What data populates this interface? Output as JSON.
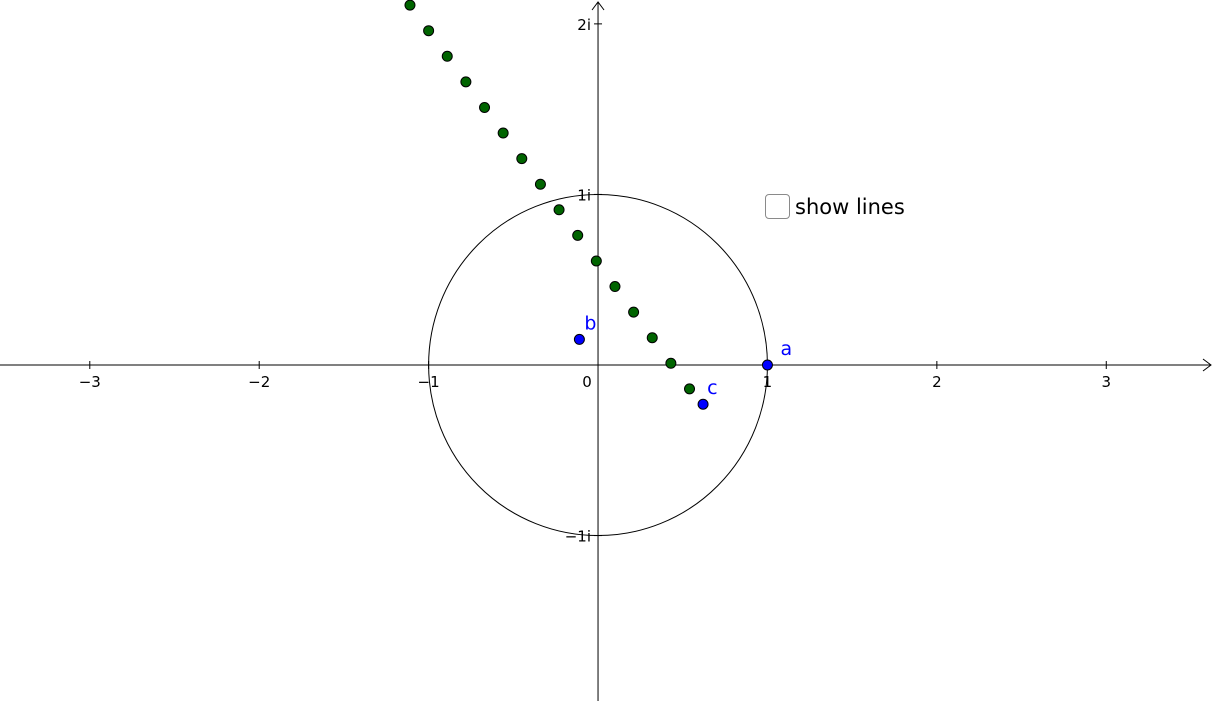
{
  "graph": {
    "xlim": [
      -3.53,
      3.63
    ],
    "ylim": [
      -1.97,
      2.14
    ],
    "x_tick_labels": [
      "−3",
      "−2",
      "−1",
      "0",
      "1",
      "2",
      "3"
    ],
    "y_tick_labels": [
      "2i",
      "1i",
      "−1i"
    ],
    "x_ticks": [
      -3,
      -2,
      -1,
      0,
      1,
      2,
      3
    ],
    "y_ticks": [
      2,
      1,
      -1
    ],
    "unit_circle": {
      "center": [
        0,
        0
      ],
      "radius": 1,
      "color": "#000000"
    },
    "points": [
      {
        "name": "a",
        "label": "a",
        "x": 1.0,
        "y": 0.0,
        "color": "#0000ff"
      },
      {
        "name": "b",
        "label": "b",
        "x": -0.11,
        "y": 0.15,
        "color": "#0000ff"
      },
      {
        "name": "c",
        "label": "c",
        "x": 0.62,
        "y": -0.23,
        "color": "#0000ff"
      }
    ],
    "sequence_points": {
      "color": "#006400",
      "values": [
        [
          -1.11,
          2.11
        ],
        [
          -1.0,
          1.96
        ],
        [
          -0.89,
          1.81
        ],
        [
          -0.78,
          1.66
        ],
        [
          -0.67,
          1.51
        ],
        [
          -0.56,
          1.36
        ],
        [
          -0.45,
          1.21
        ],
        [
          -0.34,
          1.06
        ],
        [
          -0.23,
          0.91
        ],
        [
          -0.12,
          0.76
        ],
        [
          -0.01,
          0.61
        ],
        [
          0.1,
          0.46
        ],
        [
          0.21,
          0.31
        ],
        [
          0.32,
          0.16
        ],
        [
          0.43,
          0.01
        ],
        [
          0.54,
          -0.14
        ]
      ]
    }
  },
  "controls": {
    "show_lines_label": "show lines",
    "show_lines_checked": false
  }
}
